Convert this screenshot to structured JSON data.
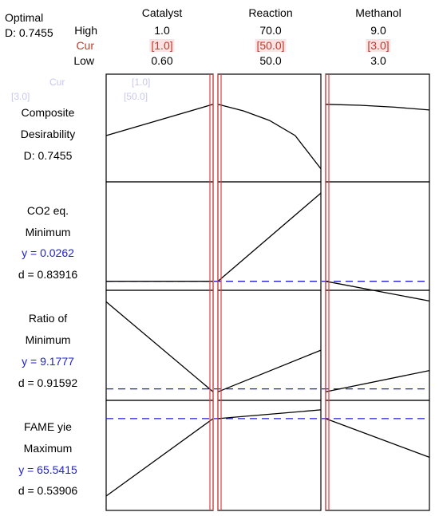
{
  "optimal": {
    "label": "Optimal",
    "d": "D: 0.7455"
  },
  "row_labels": {
    "high": "High",
    "cur": "Cur",
    "low": "Low"
  },
  "factors": [
    {
      "name": "Catalyst",
      "high": "1.0",
      "cur": "[1.0]",
      "low": "0.60"
    },
    {
      "name": "Reaction",
      "high": "70.0",
      "cur": "[50.0]",
      "low": "50.0"
    },
    {
      "name": "Methanol",
      "high": "9.0",
      "cur": "[3.0]",
      "low": "3.0"
    }
  ],
  "ghost": {
    "cur": "Cur",
    "v1": "[1.0]",
    "v2": "[3.0]",
    "v3": "[50.0]"
  },
  "responses": [
    {
      "lines": [
        "Composite",
        "Desirability",
        "D: 0.7455"
      ]
    },
    {
      "lines": [
        "CO2 eq.",
        "Minimum"
      ],
      "y": "y = 0.0262",
      "d": "d = 0.83916"
    },
    {
      "lines": [
        "Ratio of",
        "Minimum"
      ],
      "y": "y = 9.1777",
      "d": "d = 0.91592"
    },
    {
      "lines": [
        "FAME yie",
        "Maximum"
      ],
      "y": "y = 65.5415",
      "d": "d = 0.53906"
    }
  ],
  "colors": {
    "current_line": "#e04040",
    "target_line": "#1f1fd0",
    "curve": "#000000"
  },
  "chart_data": {
    "type": "line",
    "x": {
      "catalyst": [
        0.6,
        1.0
      ],
      "reaction": [
        50.0,
        70.0
      ],
      "methanol": [
        3.0,
        9.0
      ]
    },
    "current": {
      "catalyst": 1.0,
      "reaction": 50.0,
      "methanol": 3.0
    },
    "rows": [
      {
        "response": "Composite Desirability",
        "catalyst": [
          [
            0.6,
            0.42
          ],
          [
            1.0,
            0.75
          ]
        ],
        "reaction": [
          [
            50.0,
            0.75
          ],
          [
            55.0,
            0.68
          ],
          [
            60.0,
            0.58
          ],
          [
            65.0,
            0.42
          ],
          [
            70.0,
            0.07
          ]
        ],
        "methanol": [
          [
            3.0,
            0.75
          ],
          [
            5.0,
            0.74
          ],
          [
            7.0,
            0.72
          ],
          [
            9.0,
            0.69
          ]
        ],
        "target": null
      },
      {
        "response": "CO2 eq.",
        "catalyst": [
          [
            0.6,
            0.0262
          ],
          [
            1.0,
            0.0262
          ]
        ],
        "reaction": [
          [
            50.0,
            0.0262
          ],
          [
            70.0,
            0.95
          ]
        ],
        "methanol": [
          [
            3.0,
            0.0262
          ],
          [
            9.0,
            -0.18
          ]
        ],
        "target": 0.0262
      },
      {
        "response": "Ratio of",
        "catalyst": [
          [
            0.6,
            0.95
          ],
          [
            1.0,
            0.02
          ]
        ],
        "reaction": [
          [
            50.0,
            0.02
          ],
          [
            70.0,
            0.45
          ]
        ],
        "methanol": [
          [
            3.0,
            0.02
          ],
          [
            9.0,
            0.24
          ]
        ],
        "target": 0.05
      },
      {
        "response": "FAME yie",
        "catalyst": [
          [
            0.6,
            0.08
          ],
          [
            1.0,
            0.88
          ]
        ],
        "reaction": [
          [
            50.0,
            0.88
          ],
          [
            70.0,
            0.97
          ]
        ],
        "methanol": [
          [
            3.0,
            0.88
          ],
          [
            9.0,
            0.48
          ]
        ],
        "target": 0.88
      }
    ]
  }
}
